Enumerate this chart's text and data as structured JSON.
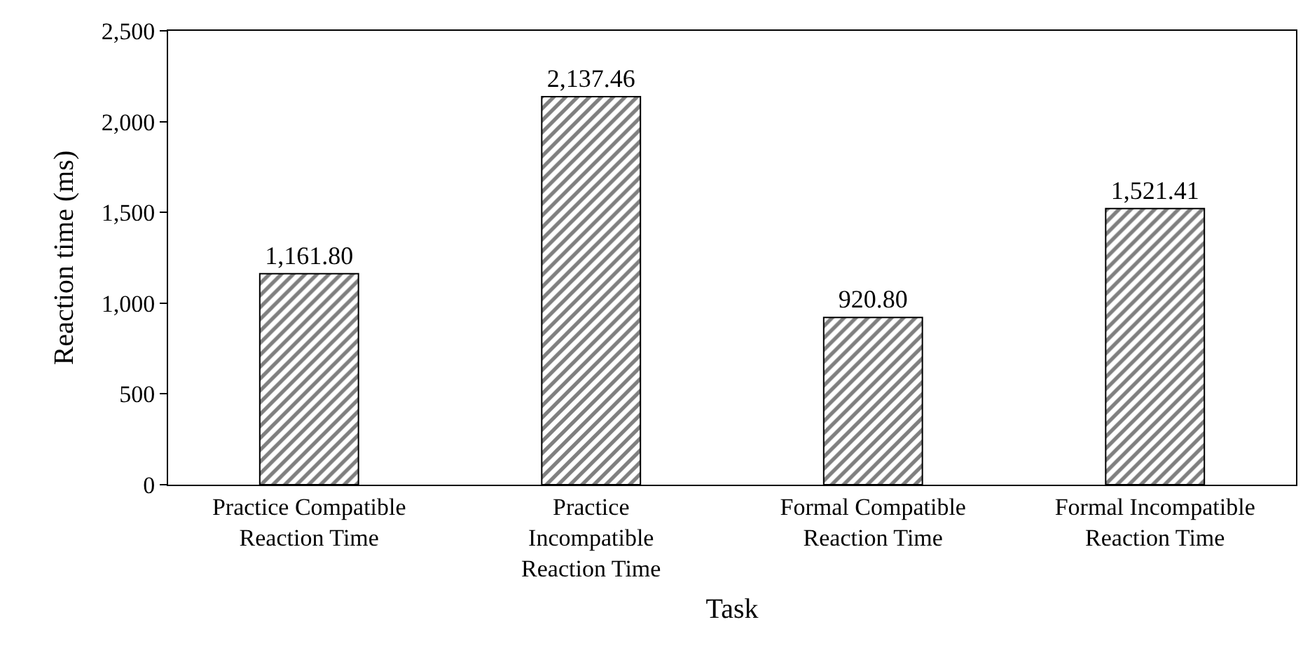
{
  "chart_data": {
    "type": "bar",
    "xlabel": "Task",
    "ylabel": "Reaction time (ms)",
    "categories": [
      "Practice Compatible Reaction Time",
      "Practice Incompatible Reaction Time",
      "Formal Compatible Reaction Time",
      "Formal Incompatible Reaction Time"
    ],
    "values": [
      1161.8,
      2137.46,
      920.8,
      1521.41
    ],
    "value_labels": [
      "1,161.80",
      "2,137.46",
      "920.80",
      "1,521.41"
    ],
    "color": "#000000",
    "ylim": [
      0,
      2500
    ],
    "yticks": [
      {
        "value": 0,
        "label": "0"
      },
      {
        "value": 500,
        "label": "500"
      },
      {
        "value": 1000,
        "label": "1,000"
      },
      {
        "value": 1500,
        "label": "1,500"
      },
      {
        "value": 2000,
        "label": "2,000"
      },
      {
        "value": 2500,
        "label": "2,500"
      }
    ],
    "grid": false,
    "legend": false
  }
}
